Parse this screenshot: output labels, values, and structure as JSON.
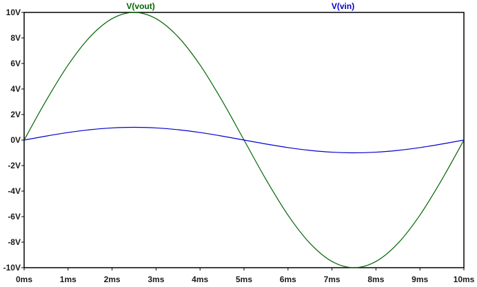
{
  "chart_data": {
    "type": "line",
    "title": "",
    "xlabel": "",
    "ylabel": "",
    "xlim": [
      0,
      10
    ],
    "ylim": [
      -10,
      10
    ],
    "x_unit": "ms",
    "y_unit": "V",
    "grid": false,
    "legend_placement": "top",
    "x_ticks": [
      {
        "value": 0,
        "label": "0ms"
      },
      {
        "value": 1,
        "label": "1ms"
      },
      {
        "value": 2,
        "label": "2ms"
      },
      {
        "value": 3,
        "label": "3ms"
      },
      {
        "value": 4,
        "label": "4ms"
      },
      {
        "value": 5,
        "label": "5ms"
      },
      {
        "value": 6,
        "label": "6ms"
      },
      {
        "value": 7,
        "label": "7ms"
      },
      {
        "value": 8,
        "label": "8ms"
      },
      {
        "value": 9,
        "label": "9ms"
      },
      {
        "value": 10,
        "label": "10ms"
      }
    ],
    "y_ticks": [
      {
        "value": 10,
        "label": "10V"
      },
      {
        "value": 8,
        "label": "8V"
      },
      {
        "value": 6,
        "label": "6V"
      },
      {
        "value": 4,
        "label": "4V"
      },
      {
        "value": 2,
        "label": "2V"
      },
      {
        "value": 0,
        "label": "0V"
      },
      {
        "value": -2,
        "label": "-2V"
      },
      {
        "value": -4,
        "label": "-4V"
      },
      {
        "value": -6,
        "label": "-6V"
      },
      {
        "value": -8,
        "label": "-8V"
      },
      {
        "value": -10,
        "label": "-10V"
      }
    ],
    "series": [
      {
        "name": "V(vout)",
        "color": "#006400",
        "x": [
          0,
          0.5,
          1,
          1.5,
          2,
          2.5,
          3,
          3.5,
          4,
          4.5,
          5,
          5.5,
          6,
          6.5,
          7,
          7.5,
          8,
          8.5,
          9,
          9.5,
          10
        ],
        "y": [
          0,
          3.09,
          5.88,
          8.09,
          9.51,
          10,
          9.51,
          8.09,
          5.88,
          3.09,
          0,
          -3.09,
          -5.88,
          -8.09,
          -9.51,
          -10,
          -9.51,
          -8.09,
          -5.88,
          -3.09,
          0
        ]
      },
      {
        "name": "V(vin)",
        "color": "#0000cd",
        "x": [
          0,
          0.5,
          1,
          1.5,
          2,
          2.5,
          3,
          3.5,
          4,
          4.5,
          5,
          5.5,
          6,
          6.5,
          7,
          7.5,
          8,
          8.5,
          9,
          9.5,
          10
        ],
        "y": [
          0,
          0.31,
          0.59,
          0.81,
          0.95,
          1,
          0.95,
          0.81,
          0.59,
          0.31,
          0,
          -0.31,
          -0.59,
          -0.81,
          -0.95,
          -1,
          -0.95,
          -0.81,
          -0.59,
          -0.31,
          0
        ]
      }
    ]
  }
}
